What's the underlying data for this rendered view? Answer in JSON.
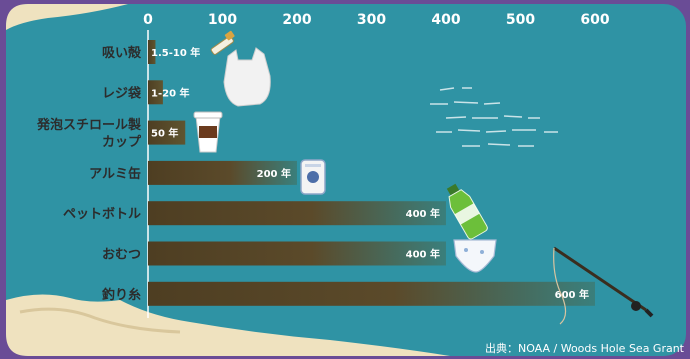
{
  "colors": {
    "border": "#6a4c96",
    "sea": "#2f93a4",
    "sand": "#efe2bf",
    "bar_dark": "#4e3e22",
    "bar_light": "#2f93a4"
  },
  "chart_data": {
    "type": "bar",
    "orientation": "horizontal",
    "categories": [
      "吸い殻",
      "レジ袋",
      "発泡スチロール製\nカップ",
      "アルミ缶",
      "ペットボトル",
      "おむつ",
      "釣り糸"
    ],
    "category_lines": [
      [
        "吸い殻"
      ],
      [
        "レジ袋"
      ],
      [
        "発泡スチロール製",
        "カップ"
      ],
      [
        "アルミ缶"
      ],
      [
        "ペットボトル"
      ],
      [
        "おむつ"
      ],
      [
        "釣り糸"
      ]
    ],
    "values": [
      10,
      20,
      50,
      200,
      400,
      400,
      600
    ],
    "value_labels": [
      "1.5-10 年",
      "1-20 年",
      "50 年",
      "200 年",
      "400 年",
      "400 年",
      "600 年"
    ],
    "x_ticks": [
      0,
      100,
      200,
      300,
      400,
      500,
      600
    ],
    "xlim": [
      0,
      600
    ],
    "grid": false,
    "icons": [
      "cigarette-icon",
      "plastic-bag-icon",
      "foam-cup-icon",
      "aluminum-can-icon",
      "pet-bottle-icon",
      "diaper-icon",
      "fishing-line-icon"
    ],
    "source": "出典：NOAA / Woods Hole Sea Grant"
  }
}
